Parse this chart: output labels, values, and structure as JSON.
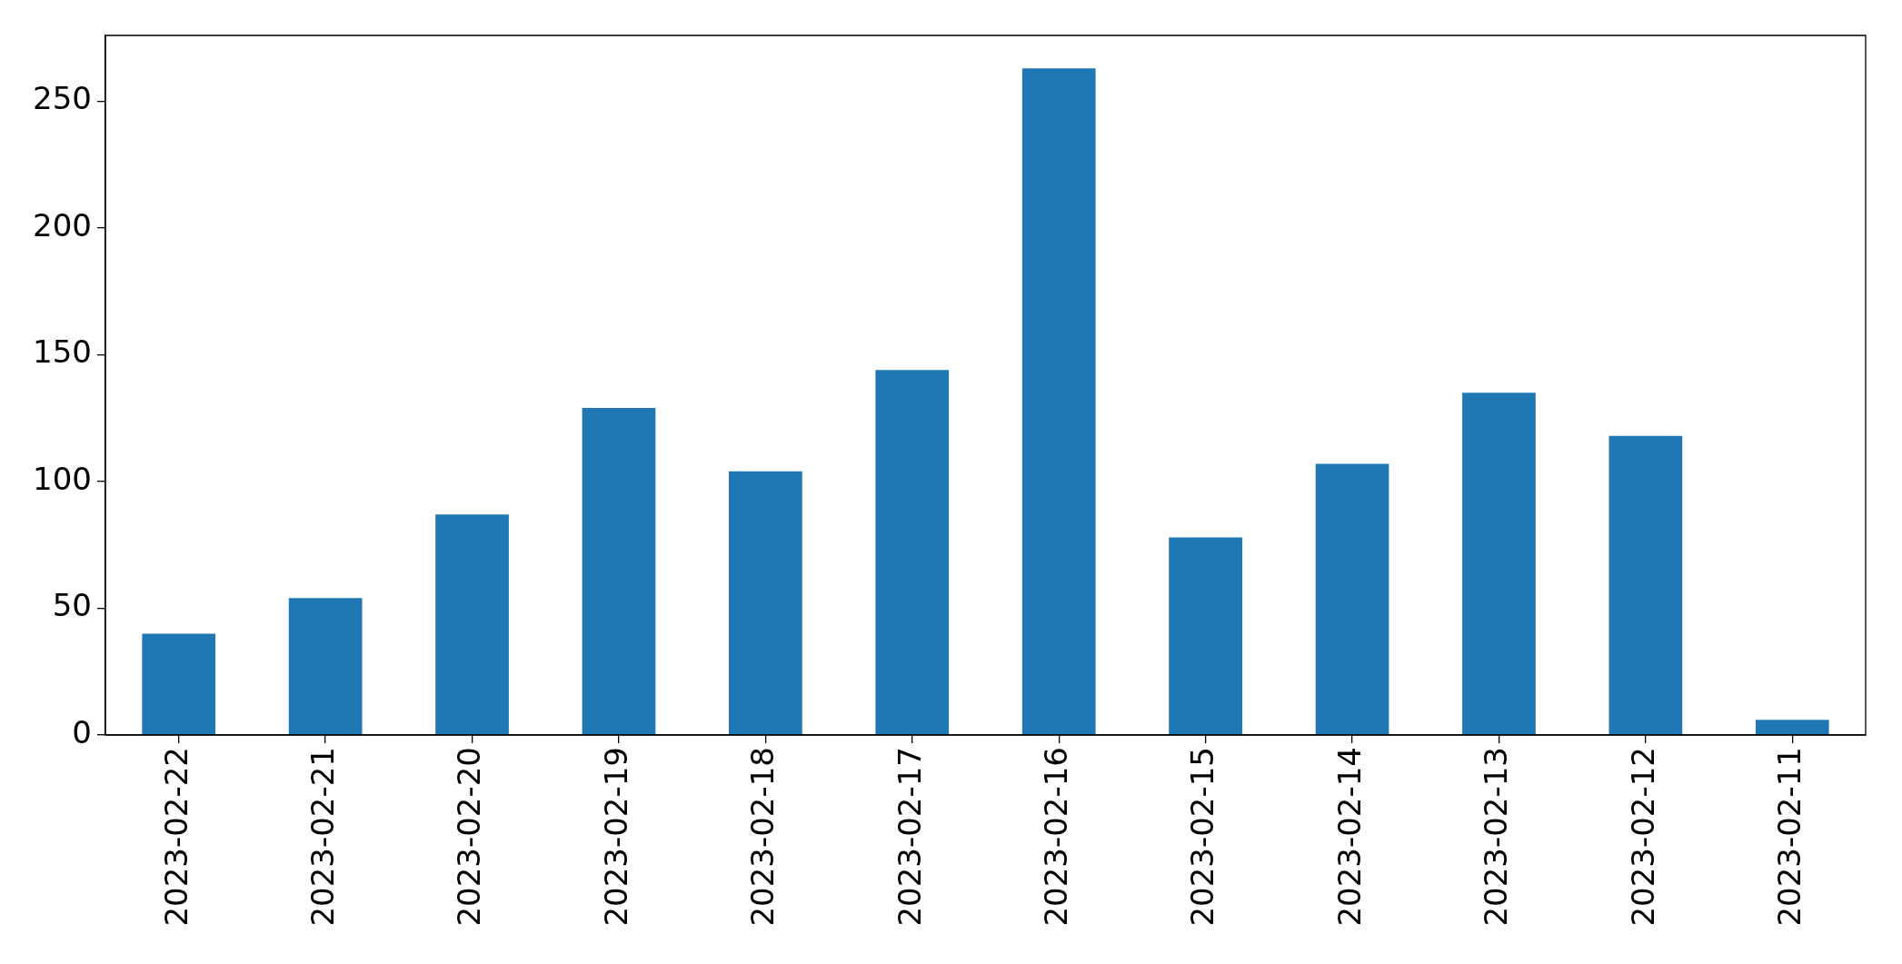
{
  "chart_data": {
    "type": "bar",
    "categories": [
      "2023-02-22",
      "2023-02-21",
      "2023-02-20",
      "2023-02-19",
      "2023-02-18",
      "2023-02-17",
      "2023-02-16",
      "2023-02-15",
      "2023-02-14",
      "2023-02-13",
      "2023-02-12",
      "2023-02-11"
    ],
    "values": [
      40,
      54,
      87,
      129,
      104,
      144,
      263,
      78,
      107,
      135,
      118,
      6
    ],
    "color": "#1f77b4",
    "ylim": [
      0,
      276
    ],
    "yticks": [
      0,
      50,
      100,
      150,
      200,
      250
    ]
  }
}
